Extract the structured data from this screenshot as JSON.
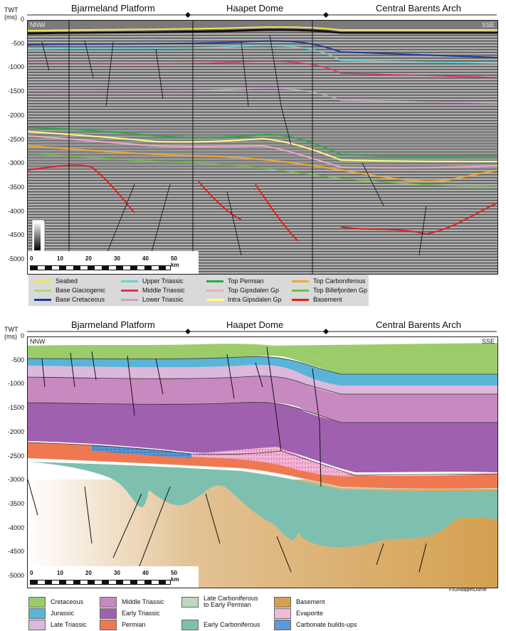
{
  "top_figure": {
    "regions": [
      "Bjarmeland Platform",
      "Haapet Dome",
      "Central Barents Arch"
    ],
    "axis_title": [
      "TWT",
      "(ms)"
    ],
    "y_ticks": [
      "0",
      "-500",
      "-1000",
      "-1500",
      "-2000",
      "-2500",
      "-3000",
      "-3500",
      "-4000",
      "-4500",
      "-5000"
    ],
    "corner_left": "NNW",
    "corner_right": "SSE",
    "scale_ticks": [
      "0",
      "10",
      "20",
      "30",
      "40",
      "50 km"
    ],
    "colorbar_labels": [
      "+",
      "-"
    ],
    "legend": [
      {
        "label": "Seabed",
        "color": "#f2e64a"
      },
      {
        "label": "Upper Triassic",
        "color": "#5fd6d0"
      },
      {
        "label": "Top Permian",
        "color": "#2aa94a"
      },
      {
        "label": "Top Carboniferous",
        "color": "#f0a830"
      },
      {
        "label": "Base Glaciogenic",
        "color": "#b4d66b"
      },
      {
        "label": "Middle Triassic",
        "color": "#e0306a"
      },
      {
        "label": "Top Gipsdalen Gp",
        "color": "#f0a8c8"
      },
      {
        "label": "Top Billefjorden Gp",
        "color": "#6cc040"
      },
      {
        "label": "Base Cretaceous",
        "color": "#1f3c9a"
      },
      {
        "label": "Lower Triassic",
        "color": "#c8a0c8"
      },
      {
        "label": "Intra Gipsdalen Gp",
        "color": "#ffff80"
      },
      {
        "label": "Basement",
        "color": "#e02020"
      }
    ]
  },
  "bottom_figure": {
    "regions": [
      "Bjarmeland Platform",
      "Haapet Dome",
      "Central Barents Arch"
    ],
    "axis_title": [
      "TWT",
      "(ms)"
    ],
    "y_ticks": [
      "0",
      "-500",
      "-1000",
      "-1500",
      "-2000",
      "-2500",
      "-3000",
      "-3500",
      "-4000",
      "-4500",
      "-5000"
    ],
    "corner_left": "NNW",
    "corner_right": "SSE",
    "scale_ticks": [
      "0",
      "10",
      "20",
      "30",
      "40",
      "50 km"
    ],
    "figure_id": "FIGHaapetDome",
    "legend": [
      {
        "label": "Cretaceous",
        "color": "#9ccc6a"
      },
      {
        "label": "Middle Triassic",
        "color": "#c888c0"
      },
      {
        "label": "Late Carboniferous\nto Early Permian",
        "color": "#bcd8c0"
      },
      {
        "label": "Basement",
        "color": "#d4a050"
      },
      {
        "label": "Jurassic",
        "color": "#5ab4d8"
      },
      {
        "label": "Early Triassic",
        "color": "#a060b0"
      },
      {
        "label": "",
        "color": ""
      },
      {
        "label": "Evaporite",
        "color": "#f4b8d8"
      },
      {
        "label": "Late Triassic",
        "color": "#dcb8dc"
      },
      {
        "label": "Permian",
        "color": "#f07850"
      },
      {
        "label": "Early Carboniferous",
        "color": "#7ec0b0"
      },
      {
        "label": "Carbonate builds-ups",
        "color": "#5a9ad8"
      }
    ]
  }
}
